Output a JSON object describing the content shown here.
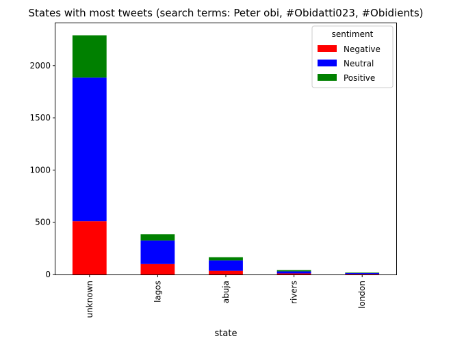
{
  "chart_data": {
    "type": "bar",
    "stacked": true,
    "title": "States with most tweets (search terms: Peter obi, #Obidatti023, #Obidients)",
    "xlabel": "state",
    "ylabel": "",
    "categories": [
      "unknown",
      "lagos",
      "abuja",
      "rivers",
      "london"
    ],
    "series": [
      {
        "name": "Negative",
        "color": "#ff0000",
        "values": [
          510,
          100,
          35,
          10,
          5
        ]
      },
      {
        "name": "Neutral",
        "color": "#0000ff",
        "values": [
          1375,
          225,
          100,
          20,
          8
        ]
      },
      {
        "name": "Positive",
        "color": "#008000",
        "values": [
          405,
          60,
          30,
          12,
          5
        ]
      }
    ],
    "ylim": [
      0,
      2405
    ],
    "yticks": [
      0,
      500,
      1000,
      1500,
      2000
    ],
    "legend": {
      "title": "sentiment",
      "placement": "top-right"
    },
    "grid": false
  }
}
